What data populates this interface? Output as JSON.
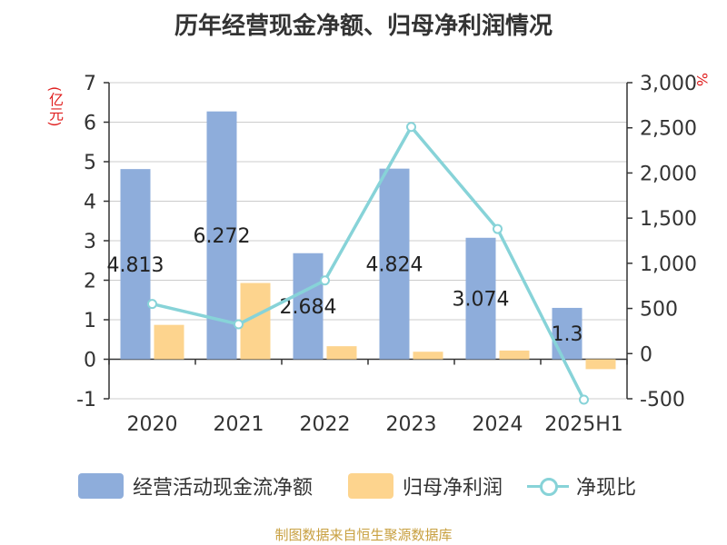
{
  "title": "历年经营现金净额、归母净利润情况",
  "left_unit": "(亿元)",
  "right_unit": "%",
  "source": "制图数据来自恒生聚源数据库",
  "colors": {
    "bar1": "#8eaddb",
    "bar2": "#fdd48e",
    "line": "#87d3d8",
    "axis": "#333333",
    "grid": "#cccccc",
    "unit": "#e02020"
  },
  "chart_data": {
    "type": "bar",
    "title": "历年经营现金净额、归母净利润情况",
    "categories": [
      "2020",
      "2021",
      "2022",
      "2023",
      "2024",
      "2025H1"
    ],
    "series": [
      {
        "name": "经营活动现金流净额",
        "type": "bar",
        "axis": "left",
        "values": [
          4.813,
          6.272,
          2.684,
          4.824,
          3.074,
          1.3
        ],
        "labels": [
          "4.813",
          "6.272",
          "2.684",
          "4.824",
          "3.074",
          "1.3"
        ]
      },
      {
        "name": "归母净利润",
        "type": "bar",
        "axis": "left",
        "values": [
          0.87,
          1.93,
          0.33,
          0.19,
          0.22,
          -0.25
        ]
      },
      {
        "name": "净现比",
        "type": "line",
        "axis": "right",
        "values": [
          550,
          325,
          810,
          2510,
          1380,
          -510
        ]
      }
    ],
    "ylim_left": [
      -1,
      7
    ],
    "yticks_left": [
      "7",
      "6",
      "5",
      "4",
      "3",
      "2",
      "1",
      "0",
      "-1"
    ],
    "ylim_right": [
      -500,
      3000
    ],
    "yticks_right": [
      "3,000",
      "2,500",
      "2,000",
      "1,500",
      "1,000",
      "500",
      "0",
      "-500"
    ],
    "grid": true,
    "legend_position": "bottom"
  }
}
